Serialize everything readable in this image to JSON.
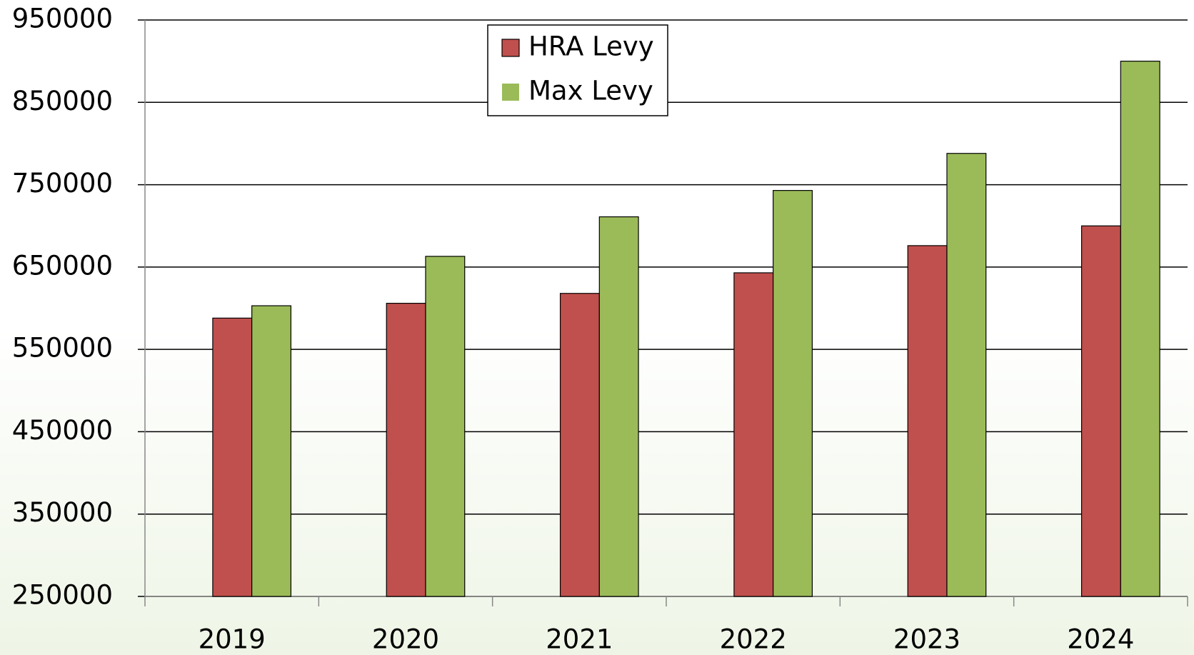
{
  "chart_data": {
    "type": "bar",
    "categories": [
      "2019",
      "2020",
      "2021",
      "2022",
      "2023",
      "2024"
    ],
    "series": [
      {
        "name": "HRA Levy",
        "color": "#c0504d",
        "values": [
          588000,
          606000,
          618000,
          643000,
          676000,
          700000
        ]
      },
      {
        "name": "Max Levy",
        "color": "#9bbb59",
        "values": [
          603000,
          663000,
          711000,
          743000,
          788000,
          900000
        ]
      }
    ],
    "ylim": [
      250000,
      950000
    ],
    "yticks": [
      250000,
      350000,
      450000,
      550000,
      650000,
      750000,
      850000,
      950000
    ],
    "grid": true
  }
}
